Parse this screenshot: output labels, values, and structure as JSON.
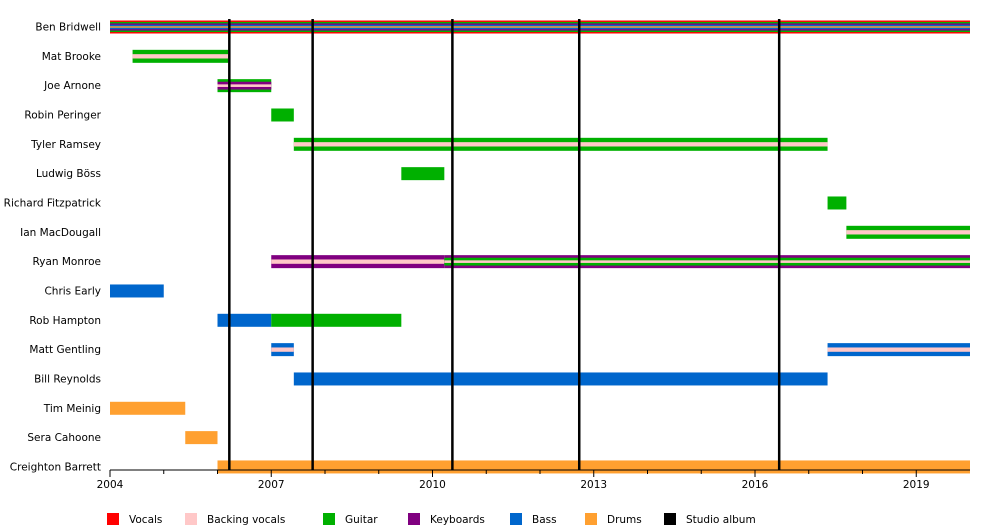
{
  "chart_data": {
    "type": "timeline",
    "x_range": [
      2004,
      2020
    ],
    "x_ticks": [
      {
        "value": 2004,
        "label": "2004"
      },
      {
        "value": 2007,
        "label": "2007"
      },
      {
        "value": 2010,
        "label": "2010"
      },
      {
        "value": 2013,
        "label": "2013"
      },
      {
        "value": 2016,
        "label": "2016"
      },
      {
        "value": 2019,
        "label": "2019"
      }
    ],
    "minor_ticks": [
      2005,
      2006,
      2008,
      2009,
      2011,
      2012,
      2014,
      2015,
      2017,
      2018
    ],
    "studio_albums": [
      2006.22,
      2007.77,
      2010.37,
      2012.73,
      2016.45
    ],
    "legend": [
      {
        "key": "vocals",
        "label": "Vocals",
        "color": "#ff0000"
      },
      {
        "key": "backing",
        "label": "Backing vocals",
        "color": "#ffc8c8"
      },
      {
        "key": "guitar",
        "label": "Guitar",
        "color": "#00b000"
      },
      {
        "key": "keys",
        "label": "Keyboards",
        "color": "#800080"
      },
      {
        "key": "bass",
        "label": "Bass",
        "color": "#0066cc"
      },
      {
        "key": "drums",
        "label": "Drums",
        "color": "#ffa030"
      },
      {
        "key": "album",
        "label": "Studio album",
        "color": "#000000"
      }
    ],
    "members": [
      {
        "name": "Ben Bridwell",
        "bars": [
          {
            "start": 2004,
            "end": 2020,
            "stack": [
              "vocals",
              "guitar",
              "keys",
              "bass",
              "drums"
            ]
          }
        ]
      },
      {
        "name": "Mat Brooke",
        "bars": [
          {
            "start": 2004.42,
            "end": 2006.2,
            "stack": [
              "guitar",
              "backing"
            ]
          }
        ]
      },
      {
        "name": "Joe Arnone",
        "bars": [
          {
            "start": 2006.0,
            "end": 2007.0,
            "stack": [
              "guitar",
              "keys",
              "backing"
            ]
          }
        ]
      },
      {
        "name": "Robin Peringer",
        "bars": [
          {
            "start": 2007.0,
            "end": 2007.42,
            "stack": [
              "guitar"
            ]
          }
        ]
      },
      {
        "name": "Tyler Ramsey",
        "bars": [
          {
            "start": 2007.42,
            "end": 2017.35,
            "stack": [
              "guitar",
              "backing"
            ]
          }
        ]
      },
      {
        "name": "Ludwig Böss",
        "bars": [
          {
            "start": 2009.42,
            "end": 2010.22,
            "stack": [
              "guitar"
            ]
          }
        ]
      },
      {
        "name": "Richard Fitzpatrick",
        "bars": [
          {
            "start": 2017.35,
            "end": 2017.7,
            "stack": [
              "guitar"
            ]
          }
        ]
      },
      {
        "name": "Ian MacDougall",
        "bars": [
          {
            "start": 2017.7,
            "end": 2020,
            "stack": [
              "guitar",
              "backing"
            ]
          }
        ]
      },
      {
        "name": "Ryan Monroe",
        "bars": [
          {
            "start": 2007.0,
            "end": 2010.22,
            "stack": [
              "keys",
              "backing"
            ]
          },
          {
            "start": 2010.22,
            "end": 2020,
            "stack": [
              "keys",
              "guitar",
              "backing"
            ]
          }
        ]
      },
      {
        "name": "Chris Early",
        "bars": [
          {
            "start": 2004,
            "end": 2005.0,
            "stack": [
              "bass"
            ]
          }
        ]
      },
      {
        "name": "Rob Hampton",
        "bars": [
          {
            "start": 2006.0,
            "end": 2007.0,
            "stack": [
              "bass"
            ]
          },
          {
            "start": 2007.0,
            "end": 2009.42,
            "stack": [
              "guitar"
            ]
          }
        ]
      },
      {
        "name": "Matt Gentling",
        "bars": [
          {
            "start": 2007.0,
            "end": 2007.42,
            "stack": [
              "bass",
              "backing"
            ]
          },
          {
            "start": 2017.35,
            "end": 2020,
            "stack": [
              "bass",
              "backing"
            ]
          }
        ]
      },
      {
        "name": "Bill Reynolds",
        "bars": [
          {
            "start": 2007.42,
            "end": 2017.35,
            "stack": [
              "bass"
            ]
          }
        ]
      },
      {
        "name": "Tim Meinig",
        "bars": [
          {
            "start": 2004,
            "end": 2005.4,
            "stack": [
              "drums"
            ]
          }
        ]
      },
      {
        "name": "Sera Cahoone",
        "bars": [
          {
            "start": 2005.4,
            "end": 2006.0,
            "stack": [
              "drums"
            ]
          }
        ]
      },
      {
        "name": "Creighton Barrett",
        "bars": [
          {
            "start": 2006.0,
            "end": 2020,
            "stack": [
              "drums"
            ]
          }
        ]
      }
    ]
  }
}
